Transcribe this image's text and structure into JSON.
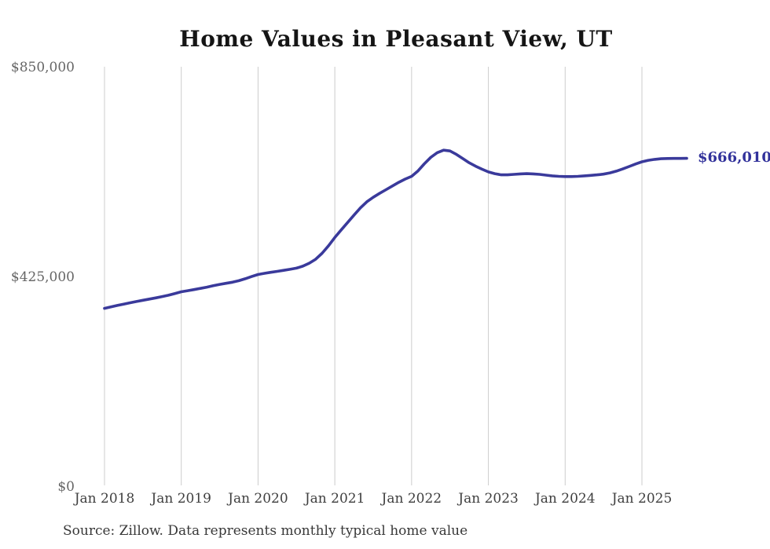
{
  "title": "Home Values in Pleasant View, UT",
  "source_note": "Source: Zillow. Data represents monthly typical home value",
  "chart_data": {
    "type": "line",
    "title": "Home Values in Pleasant View, UT",
    "series_name": "Monthly typical home value",
    "grid": "vertical-only",
    "legend": "none",
    "ylim": [
      0,
      850000
    ],
    "line_color": "#3a3a9b",
    "gridline_color": "#cccccc",
    "end_label_color": "#32329b",
    "last_value": 666010,
    "last_value_label": "$666,010",
    "y_ticks": [
      {
        "value": 850000,
        "label": "$850,000"
      },
      {
        "value": 425000,
        "label": "$425,000"
      },
      {
        "value": 0,
        "label": "$0"
      }
    ],
    "x_ticks": [
      {
        "x": "2018-01",
        "label": "Jan 2018"
      },
      {
        "x": "2019-01",
        "label": "Jan 2019"
      },
      {
        "x": "2020-01",
        "label": "Jan 2020"
      },
      {
        "x": "2021-01",
        "label": "Jan 2021"
      },
      {
        "x": "2022-01",
        "label": "Jan 2022"
      },
      {
        "x": "2023-01",
        "label": "Jan 2023"
      },
      {
        "x": "2024-01",
        "label": "Jan 2024"
      },
      {
        "x": "2025-01",
        "label": "Jan 2025"
      }
    ],
    "x": [
      "2018-01",
      "2018-02",
      "2018-03",
      "2018-04",
      "2018-05",
      "2018-06",
      "2018-07",
      "2018-08",
      "2018-09",
      "2018-10",
      "2018-11",
      "2018-12",
      "2019-01",
      "2019-02",
      "2019-03",
      "2019-04",
      "2019-05",
      "2019-06",
      "2019-07",
      "2019-08",
      "2019-09",
      "2019-10",
      "2019-11",
      "2019-12",
      "2020-01",
      "2020-02",
      "2020-03",
      "2020-04",
      "2020-05",
      "2020-06",
      "2020-07",
      "2020-08",
      "2020-09",
      "2020-10",
      "2020-11",
      "2020-12",
      "2021-01",
      "2021-02",
      "2021-03",
      "2021-04",
      "2021-05",
      "2021-06",
      "2021-07",
      "2021-08",
      "2021-09",
      "2021-10",
      "2021-11",
      "2021-12",
      "2022-01",
      "2022-02",
      "2022-03",
      "2022-04",
      "2022-05",
      "2022-06",
      "2022-07",
      "2022-08",
      "2022-09",
      "2022-10",
      "2022-11",
      "2022-12",
      "2023-01",
      "2023-02",
      "2023-03",
      "2023-04",
      "2023-05",
      "2023-06",
      "2023-07",
      "2023-08",
      "2023-09",
      "2023-10",
      "2023-11",
      "2023-12",
      "2024-01",
      "2024-02",
      "2024-03",
      "2024-04",
      "2024-05",
      "2024-06",
      "2024-07",
      "2024-08",
      "2024-09",
      "2024-10",
      "2024-11",
      "2024-12",
      "2025-01",
      "2025-02",
      "2025-03",
      "2025-04",
      "2025-05",
      "2025-06",
      "2025-07",
      "2025-08"
    ],
    "values": [
      362000,
      364800,
      367800,
      370600,
      373200,
      375800,
      378400,
      380800,
      383200,
      385800,
      388600,
      392000,
      395500,
      397800,
      400000,
      402400,
      405000,
      407800,
      410500,
      412800,
      415000,
      418000,
      422000,
      426500,
      430500,
      433000,
      435000,
      437000,
      439000,
      441000,
      443500,
      447500,
      453500,
      461500,
      473500,
      488500,
      505500,
      521000,
      536000,
      551000,
      565500,
      578000,
      587000,
      595000,
      602500,
      610000,
      617500,
      624000,
      629500,
      640500,
      655000,
      668000,
      677500,
      682500,
      681000,
      674000,
      665500,
      657000,
      650000,
      644000,
      638500,
      635000,
      632500,
      632500,
      633500,
      634500,
      635000,
      634500,
      633500,
      632000,
      630500,
      629500,
      629000,
      629000,
      629500,
      630500,
      631500,
      632500,
      634000,
      636500,
      640000,
      644500,
      649500,
      654500,
      659000,
      662000,
      664000,
      665200,
      665600,
      665800,
      665900,
      666010
    ]
  }
}
